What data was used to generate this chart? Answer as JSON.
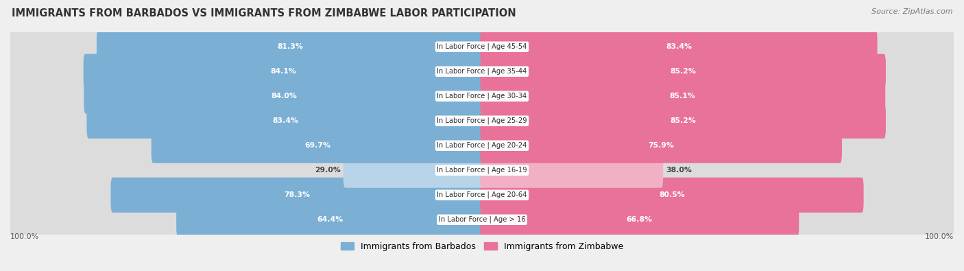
{
  "title": "IMMIGRANTS FROM BARBADOS VS IMMIGRANTS FROM ZIMBABWE LABOR PARTICIPATION",
  "source": "Source: ZipAtlas.com",
  "categories": [
    "In Labor Force | Age > 16",
    "In Labor Force | Age 20-64",
    "In Labor Force | Age 16-19",
    "In Labor Force | Age 20-24",
    "In Labor Force | Age 25-29",
    "In Labor Force | Age 30-34",
    "In Labor Force | Age 35-44",
    "In Labor Force | Age 45-54"
  ],
  "barbados_values": [
    64.4,
    78.3,
    29.0,
    69.7,
    83.4,
    84.0,
    84.1,
    81.3
  ],
  "zimbabwe_values": [
    66.8,
    80.5,
    38.0,
    75.9,
    85.2,
    85.1,
    85.2,
    83.4
  ],
  "barbados_color": "#7BAFD4",
  "zimbabwe_color": "#E8729A",
  "barbados_light_color": "#B8D4E8",
  "zimbabwe_light_color": "#F2B0C5",
  "bg_color": "#efefef",
  "legend_barbados": "Immigrants from Barbados",
  "legend_zimbabwe": "Immigrants from Zimbabwe",
  "max_value": 100.0,
  "low_threshold": 45
}
